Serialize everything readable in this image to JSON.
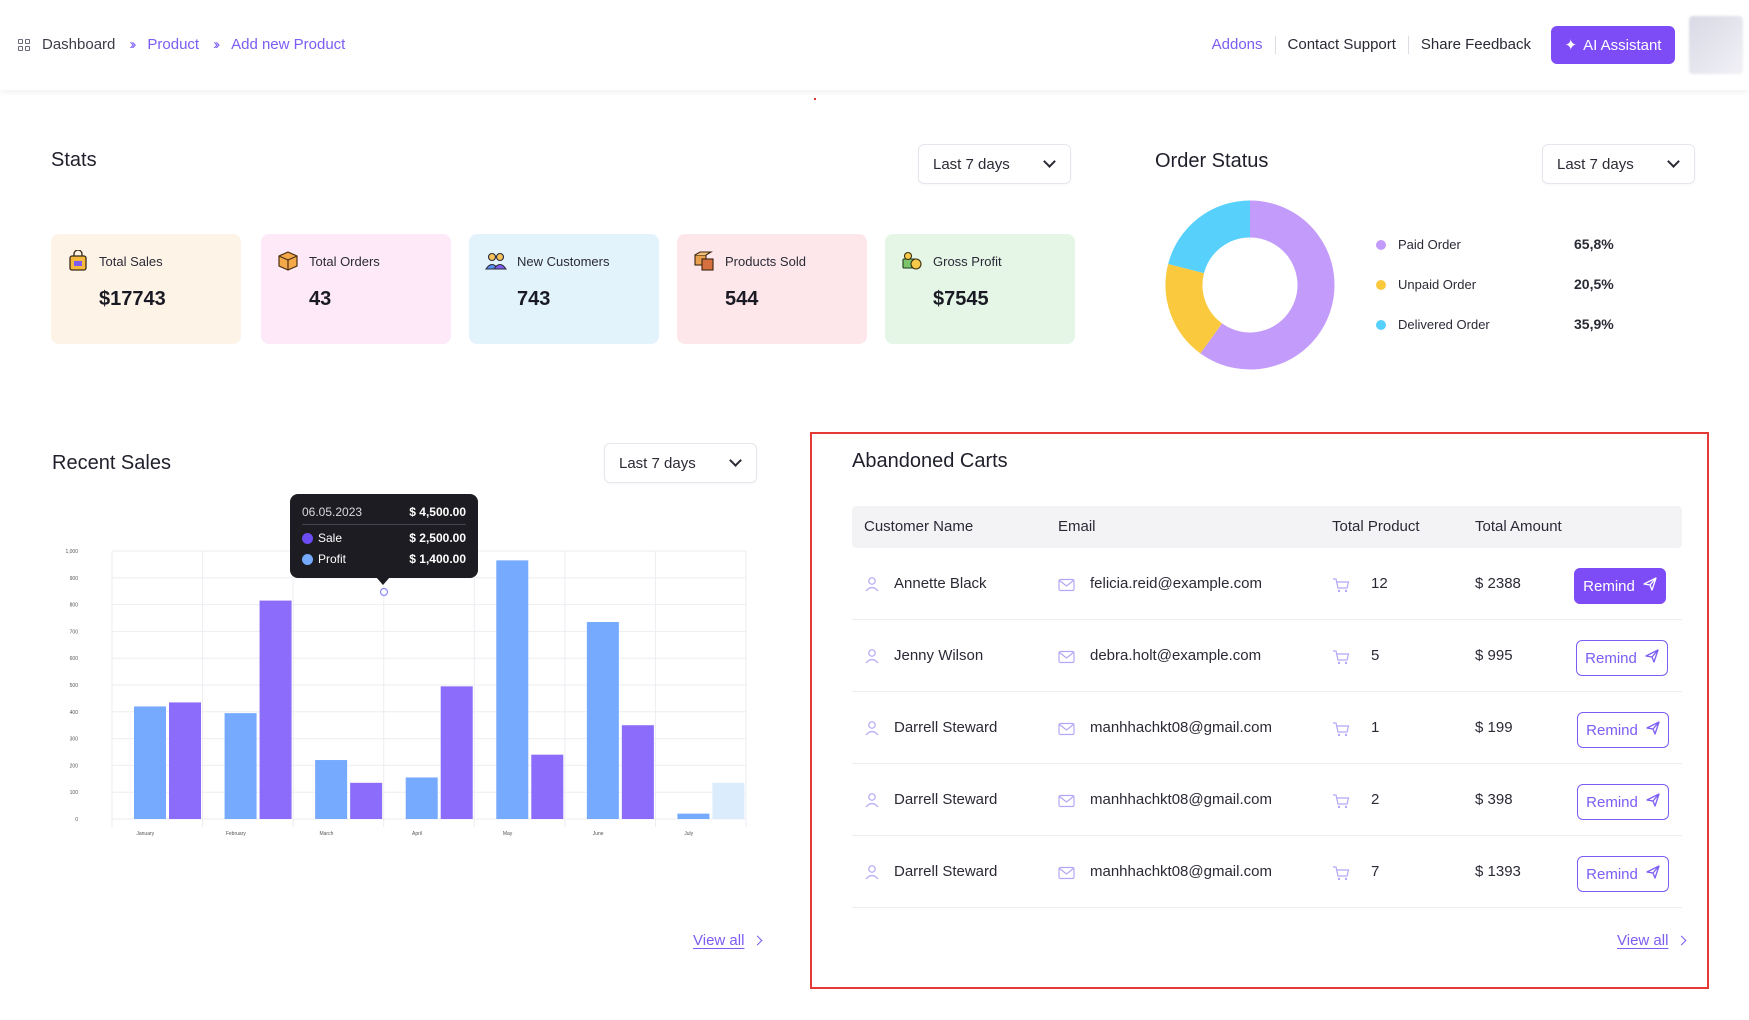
{
  "header": {
    "breadcrumbs": [
      "Dashboard",
      "Product",
      "Add new Product"
    ],
    "links": [
      "Addons",
      "Contact Support",
      "Share Feedback"
    ],
    "ai_button": "AI Assistant"
  },
  "stats": {
    "title": "Stats",
    "range": "Last 7 days",
    "cards": [
      {
        "label": "Total Sales",
        "value": "$17743",
        "bg": "#fdf3e7",
        "icon": "shopping-bag-icon"
      },
      {
        "label": "Total Orders",
        "value": "43",
        "bg": "#fde9f7",
        "icon": "package-icon"
      },
      {
        "label": "New Customers",
        "value": "743",
        "bg": "#e3f3fc",
        "icon": "customers-icon"
      },
      {
        "label": "Products Sold",
        "value": "544",
        "bg": "#fde7ea",
        "icon": "boxes-icon"
      },
      {
        "label": "Gross Profit",
        "value": "$7545",
        "bg": "#e5f5e6",
        "icon": "money-icon"
      }
    ]
  },
  "order_status": {
    "title": "Order Status",
    "range": "Last 7 days",
    "items": [
      {
        "name": "Paid Order",
        "percent": "65,8%",
        "color": "#c39bfa"
      },
      {
        "name": "Unpaid Order",
        "percent": "20,5%",
        "color": "#fbc93d"
      },
      {
        "name": "Delivered Order",
        "percent": "35,9%",
        "color": "#57d1fb"
      }
    ]
  },
  "recent_sales": {
    "title": "Recent Sales",
    "range": "Last 7 days",
    "view_all": "View all",
    "tooltip": {
      "date": "06.05.2023",
      "total": "$ 4,500.00",
      "rows": [
        {
          "name": "Sale",
          "value": "$ 2,500.00",
          "color": "#6c4cf5"
        },
        {
          "name": "Profit",
          "value": "$ 1,400.00",
          "color": "#75aaff"
        }
      ]
    }
  },
  "chart_data": {
    "type": "bar",
    "categories": [
      "January",
      "February",
      "March",
      "April",
      "May",
      "June",
      "July"
    ],
    "y_ticks": [
      "1,000",
      "900",
      "800",
      "700",
      "600",
      "500",
      "400",
      "300",
      "200",
      "100",
      "0"
    ],
    "ylim": [
      0,
      1000
    ],
    "grid": true,
    "series": [
      {
        "name": "Profit",
        "color": "#75aaff",
        "values": [
          420,
          395,
          220,
          155,
          965,
          735,
          20
        ]
      },
      {
        "name": "Sale",
        "color": "#8b6cfb",
        "values": [
          435,
          815,
          135,
          495,
          240,
          350,
          135
        ]
      }
    ],
    "last_sale_bar_color": "#dbecfd"
  },
  "abandoned_carts": {
    "title": "Abandoned Carts",
    "columns": [
      "Customer Name",
      "Email",
      "Total Product",
      "Total Amount"
    ],
    "rows": [
      {
        "name": "Annette Black",
        "email": "felicia.reid@example.com",
        "products": "12",
        "amount": "$ 2388",
        "action": "Remind"
      },
      {
        "name": "Jenny Wilson",
        "email": "debra.holt@example.com",
        "products": "5",
        "amount": "$ 995",
        "action": "Remind"
      },
      {
        "name": "Darrell Steward",
        "email": "manhhachkt08@gmail.com",
        "products": "1",
        "amount": "$ 199",
        "action": "Remind"
      },
      {
        "name": "Darrell Steward",
        "email": "manhhachkt08@gmail.com",
        "products": "2",
        "amount": "$ 398",
        "action": "Remind"
      },
      {
        "name": "Darrell Steward",
        "email": "manhhachkt08@gmail.com",
        "products": "7",
        "amount": "$ 1393",
        "action": "Remind"
      }
    ],
    "view_all": "View all"
  }
}
